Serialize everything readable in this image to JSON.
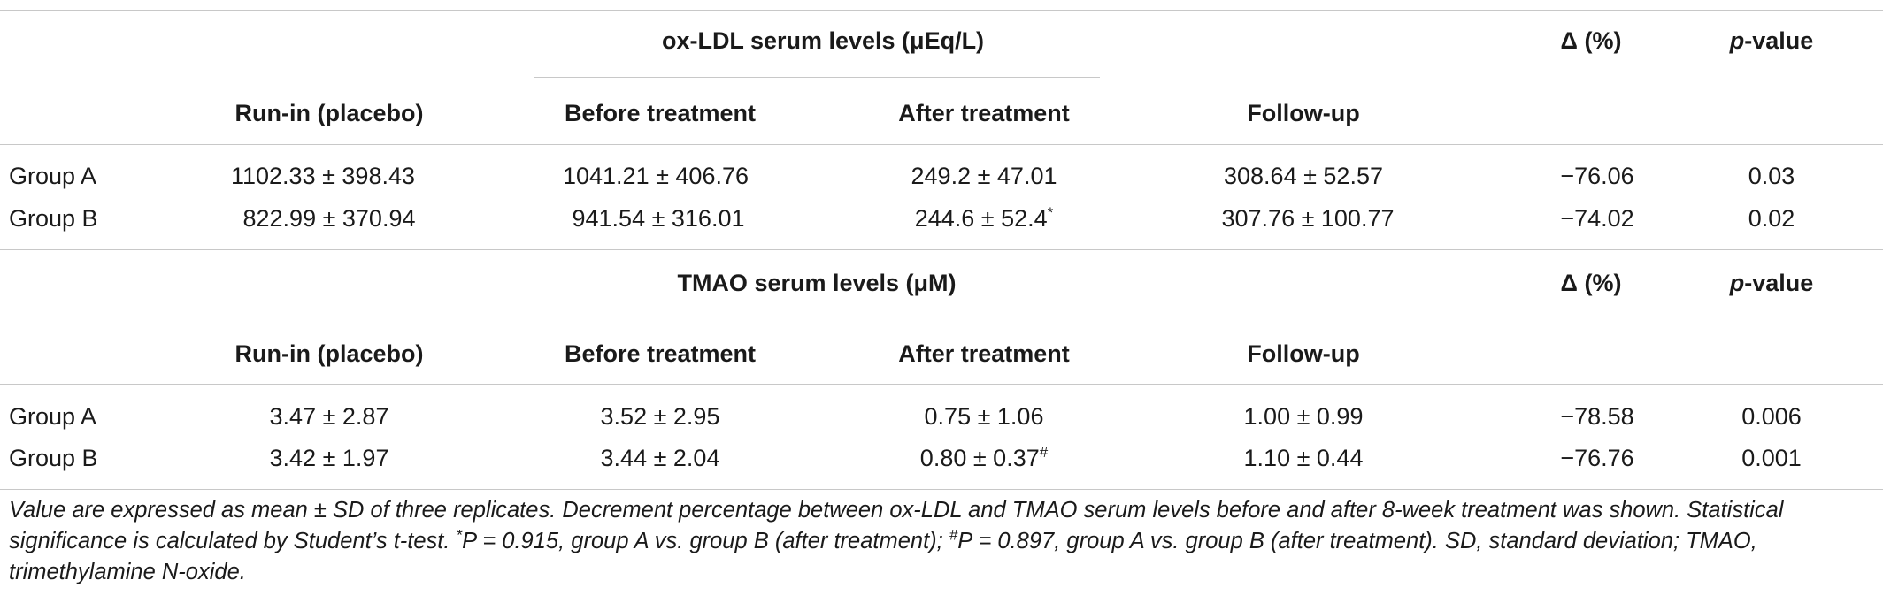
{
  "sections": [
    {
      "group_header": "ox-LDL serum levels (μEq/L)",
      "delta_header": "Δ (%)",
      "p_prefix": "p",
      "p_suffix": "-value",
      "columns": [
        "Run-in (placebo)",
        "Before treatment",
        "After treatment",
        "Follow-up"
      ],
      "rows": [
        {
          "label": "Group A",
          "runin": "1102.33 ± 398.43",
          "before": "1041.21 ± 406.76",
          "after": "249.2 ± 47.01",
          "after_mark": "",
          "followup": "308.64 ± 52.57",
          "delta": "−76.06",
          "p": "0.03"
        },
        {
          "label": "Group B",
          "runin": "822.99 ± 370.94",
          "before": "941.54 ± 316.01",
          "after": "244.6 ± 52.4",
          "after_mark": "*",
          "followup": "307.76 ± 100.77",
          "delta": "−74.02",
          "p": "0.02"
        }
      ]
    },
    {
      "group_header": "TMAO serum levels (μM)",
      "delta_header": "Δ (%)",
      "p_prefix": "p",
      "p_suffix": "-value",
      "columns": [
        "Run-in (placebo)",
        "Before treatment",
        "After treatment",
        "Follow-up"
      ],
      "rows": [
        {
          "label": "Group A",
          "runin": "3.47 ± 2.87",
          "before": "3.52 ± 2.95",
          "after": "0.75 ± 1.06",
          "after_mark": "",
          "followup": "1.00 ± 0.99",
          "delta": "−78.58",
          "p": "0.006"
        },
        {
          "label": "Group B",
          "runin": "3.42 ± 1.97",
          "before": "3.44 ± 2.04",
          "after": "0.80 ± 0.37",
          "after_mark": "#",
          "followup": "1.10 ± 0.44",
          "delta": "−76.76",
          "p": "0.001"
        }
      ]
    }
  ],
  "footnote": {
    "text_1": "Value are expressed as mean ± SD of three replicates. Decrement percentage between ox-LDL and TMAO serum levels before and after 8-week treatment was shown. Statistical significance is calculated by Student’s t-test. ",
    "mark_1": "*",
    "text_2": "P = 0.915, group A vs. group B (after treatment); ",
    "mark_2": "#",
    "text_3": "P = 0.897, group A vs. group B (after treatment). SD, standard deviation; TMAO, trimethylamine N-oxide."
  }
}
